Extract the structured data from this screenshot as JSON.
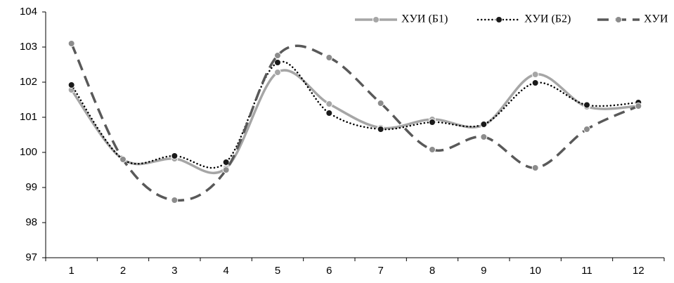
{
  "chart_data": {
    "type": "line",
    "categories": [
      "1",
      "2",
      "3",
      "4",
      "5",
      "6",
      "7",
      "8",
      "9",
      "10",
      "11",
      "12"
    ],
    "series": [
      {
        "name": "ХУИ (Б1)",
        "color": "#a6a6a6",
        "marker_color": "#a6a6a6",
        "style": "solid",
        "values": [
          101.78,
          99.8,
          99.82,
          99.55,
          102.28,
          101.38,
          100.7,
          100.94,
          100.78,
          102.22,
          101.3,
          101.32
        ]
      },
      {
        "name": "ХУИ (Б2)",
        "color": "#000000",
        "marker_color": "#1a1a1a",
        "style": "dotted",
        "values": [
          101.92,
          99.8,
          99.9,
          99.72,
          102.56,
          101.12,
          100.66,
          100.86,
          100.8,
          101.98,
          101.35,
          101.42
        ]
      },
      {
        "name": "ХУИ",
        "color": "#595959",
        "marker_color": "#8c8c8c",
        "style": "dashed",
        "values": [
          103.1,
          99.8,
          98.64,
          99.5,
          102.76,
          102.7,
          101.4,
          100.08,
          100.44,
          99.56,
          100.66,
          101.32
        ]
      }
    ],
    "ylim": [
      97,
      104
    ],
    "yticks": [
      97,
      98,
      99,
      100,
      101,
      102,
      103,
      104
    ],
    "smooth": true,
    "grid": false,
    "legend": "top-right"
  }
}
